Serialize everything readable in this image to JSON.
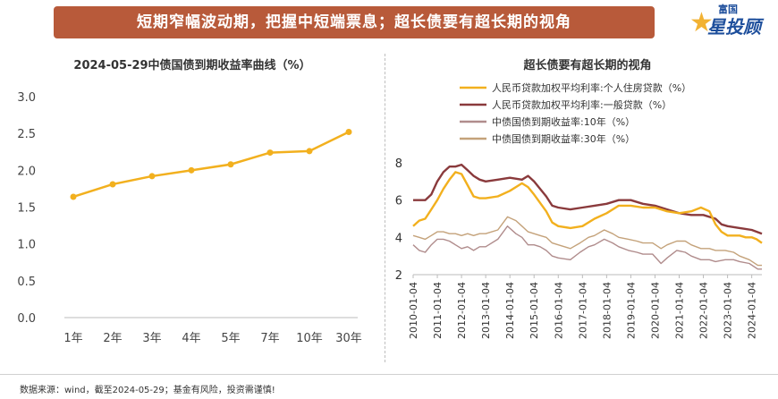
{
  "banner": {
    "title": "短期窄幅波动期，把握中短端票息；超长债要有超长期的视角"
  },
  "logo": {
    "small_text": "富国",
    "big_text": "星投顾",
    "star": "★"
  },
  "footer": {
    "text": "数据来源：wind，截至2024-05-29；基金有风险，投资需谨慎!"
  },
  "colors": {
    "gold": "#f2b01e",
    "maroon": "#8a3a3c",
    "mauve": "#b08c8c",
    "tan": "#c4a27a"
  },
  "chart_data": [
    {
      "type": "line",
      "title": "2024-05-29中债国债到期收益率曲线（%）",
      "categories": [
        "1年",
        "2年",
        "3年",
        "4年",
        "5年",
        "7年",
        "10年",
        "30年"
      ],
      "values": [
        1.64,
        1.81,
        1.92,
        2.0,
        2.08,
        2.24,
        2.26,
        2.52
      ],
      "ylim": [
        0.0,
        3.0
      ],
      "yticks": [
        "0.0",
        "0.5",
        "1.0",
        "1.5",
        "2.0",
        "2.5",
        "3.0"
      ],
      "color": "#f2b01e"
    },
    {
      "type": "line",
      "title": "超长债要有超长期的视角",
      "ylim": [
        2,
        8
      ],
      "yticks": [
        "2",
        "4",
        "6",
        "8"
      ],
      "x_labels": [
        "2010-01-04",
        "2011-01-04",
        "2012-01-04",
        "2013-01-04",
        "2014-01-04",
        "2015-01-04",
        "2016-01-04",
        "2017-01-04",
        "2018-01-04",
        "2019-01-04",
        "2020-01-04",
        "2021-01-04",
        "2022-01-04",
        "2023-01-04",
        "2024-01-04"
      ],
      "x_range": [
        2010.0,
        2024.42
      ],
      "series": [
        {
          "name": "人民币贷款加权平均利率:个人住房贷款（%）",
          "color": "#f2b01e",
          "points": [
            [
              2010.0,
              4.6
            ],
            [
              2010.25,
              4.9
            ],
            [
              2010.5,
              5.0
            ],
            [
              2010.75,
              5.5
            ],
            [
              2011.0,
              6.0
            ],
            [
              2011.25,
              6.6
            ],
            [
              2011.5,
              7.1
            ],
            [
              2011.75,
              7.5
            ],
            [
              2012.0,
              7.4
            ],
            [
              2012.25,
              6.8
            ],
            [
              2012.5,
              6.2
            ],
            [
              2012.75,
              6.1
            ],
            [
              2013.0,
              6.1
            ],
            [
              2013.5,
              6.2
            ],
            [
              2014.0,
              6.5
            ],
            [
              2014.5,
              6.9
            ],
            [
              2014.75,
              6.7
            ],
            [
              2015.0,
              6.3
            ],
            [
              2015.5,
              5.4
            ],
            [
              2015.75,
              4.8
            ],
            [
              2016.0,
              4.6
            ],
            [
              2016.5,
              4.5
            ],
            [
              2017.0,
              4.6
            ],
            [
              2017.5,
              5.0
            ],
            [
              2018.0,
              5.3
            ],
            [
              2018.5,
              5.7
            ],
            [
              2019.0,
              5.7
            ],
            [
              2019.5,
              5.6
            ],
            [
              2020.0,
              5.6
            ],
            [
              2020.5,
              5.4
            ],
            [
              2021.0,
              5.3
            ],
            [
              2021.5,
              5.4
            ],
            [
              2021.9,
              5.6
            ],
            [
              2022.25,
              5.4
            ],
            [
              2022.5,
              4.7
            ],
            [
              2022.75,
              4.3
            ],
            [
              2023.0,
              4.1
            ],
            [
              2023.5,
              4.1
            ],
            [
              2023.75,
              4.0
            ],
            [
              2024.0,
              4.0
            ],
            [
              2024.2,
              3.9
            ],
            [
              2024.42,
              3.7
            ]
          ]
        },
        {
          "name": "人民币贷款加权平均利率:一般贷款（%）",
          "color": "#8a3a3c",
          "points": [
            [
              2010.0,
              6.0
            ],
            [
              2010.5,
              6.0
            ],
            [
              2010.75,
              6.3
            ],
            [
              2011.0,
              7.0
            ],
            [
              2011.25,
              7.5
            ],
            [
              2011.5,
              7.8
            ],
            [
              2011.75,
              7.8
            ],
            [
              2012.0,
              7.9
            ],
            [
              2012.25,
              7.6
            ],
            [
              2012.5,
              7.3
            ],
            [
              2012.75,
              7.1
            ],
            [
              2013.0,
              7.0
            ],
            [
              2013.5,
              7.1
            ],
            [
              2014.0,
              7.2
            ],
            [
              2014.5,
              7.1
            ],
            [
              2014.75,
              7.3
            ],
            [
              2015.0,
              7.0
            ],
            [
              2015.5,
              6.2
            ],
            [
              2015.75,
              5.7
            ],
            [
              2016.0,
              5.6
            ],
            [
              2016.5,
              5.5
            ],
            [
              2017.0,
              5.6
            ],
            [
              2017.5,
              5.7
            ],
            [
              2018.0,
              5.8
            ],
            [
              2018.5,
              6.0
            ],
            [
              2019.0,
              6.0
            ],
            [
              2019.5,
              5.8
            ],
            [
              2020.0,
              5.7
            ],
            [
              2020.5,
              5.5
            ],
            [
              2021.0,
              5.3
            ],
            [
              2021.5,
              5.2
            ],
            [
              2022.0,
              5.2
            ],
            [
              2022.5,
              5.0
            ],
            [
              2022.75,
              4.7
            ],
            [
              2023.0,
              4.6
            ],
            [
              2023.5,
              4.5
            ],
            [
              2024.0,
              4.4
            ],
            [
              2024.42,
              4.2
            ]
          ]
        },
        {
          "name": "中债国债到期收益率:10年（%）",
          "color": "#b08c8c",
          "points": [
            [
              2010.0,
              3.6
            ],
            [
              2010.25,
              3.3
            ],
            [
              2010.5,
              3.2
            ],
            [
              2010.75,
              3.6
            ],
            [
              2011.0,
              3.9
            ],
            [
              2011.25,
              3.9
            ],
            [
              2011.5,
              3.8
            ],
            [
              2011.75,
              3.6
            ],
            [
              2012.0,
              3.4
            ],
            [
              2012.25,
              3.5
            ],
            [
              2012.5,
              3.3
            ],
            [
              2012.75,
              3.5
            ],
            [
              2013.0,
              3.5
            ],
            [
              2013.5,
              3.9
            ],
            [
              2013.9,
              4.6
            ],
            [
              2014.25,
              4.2
            ],
            [
              2014.5,
              4.0
            ],
            [
              2014.75,
              3.6
            ],
            [
              2015.0,
              3.6
            ],
            [
              2015.25,
              3.5
            ],
            [
              2015.5,
              3.3
            ],
            [
              2015.75,
              3.0
            ],
            [
              2016.0,
              2.9
            ],
            [
              2016.5,
              2.8
            ],
            [
              2016.9,
              3.2
            ],
            [
              2017.25,
              3.5
            ],
            [
              2017.5,
              3.6
            ],
            [
              2017.9,
              3.9
            ],
            [
              2018.25,
              3.7
            ],
            [
              2018.5,
              3.5
            ],
            [
              2018.9,
              3.3
            ],
            [
              2019.25,
              3.2
            ],
            [
              2019.5,
              3.1
            ],
            [
              2019.9,
              3.1
            ],
            [
              2020.25,
              2.6
            ],
            [
              2020.5,
              2.9
            ],
            [
              2020.9,
              3.3
            ],
            [
              2021.25,
              3.2
            ],
            [
              2021.5,
              3.0
            ],
            [
              2021.9,
              2.8
            ],
            [
              2022.25,
              2.8
            ],
            [
              2022.5,
              2.7
            ],
            [
              2022.9,
              2.8
            ],
            [
              2023.25,
              2.8
            ],
            [
              2023.5,
              2.7
            ],
            [
              2023.9,
              2.6
            ],
            [
              2024.25,
              2.3
            ],
            [
              2024.42,
              2.3
            ]
          ]
        },
        {
          "name": "中债国债到期收益率:30年（%）",
          "color": "#c4a27a",
          "points": [
            [
              2010.0,
              4.1
            ],
            [
              2010.25,
              4.0
            ],
            [
              2010.5,
              3.9
            ],
            [
              2010.75,
              4.1
            ],
            [
              2011.0,
              4.3
            ],
            [
              2011.25,
              4.3
            ],
            [
              2011.5,
              4.2
            ],
            [
              2011.75,
              4.2
            ],
            [
              2012.0,
              4.1
            ],
            [
              2012.25,
              4.2
            ],
            [
              2012.5,
              4.1
            ],
            [
              2012.75,
              4.2
            ],
            [
              2013.0,
              4.2
            ],
            [
              2013.5,
              4.4
            ],
            [
              2013.9,
              5.1
            ],
            [
              2014.25,
              4.9
            ],
            [
              2014.5,
              4.6
            ],
            [
              2014.75,
              4.3
            ],
            [
              2015.0,
              4.2
            ],
            [
              2015.25,
              4.1
            ],
            [
              2015.5,
              4.0
            ],
            [
              2015.75,
              3.7
            ],
            [
              2016.0,
              3.6
            ],
            [
              2016.5,
              3.4
            ],
            [
              2016.9,
              3.7
            ],
            [
              2017.25,
              4.0
            ],
            [
              2017.5,
              4.1
            ],
            [
              2017.9,
              4.4
            ],
            [
              2018.25,
              4.2
            ],
            [
              2018.5,
              4.0
            ],
            [
              2018.9,
              3.9
            ],
            [
              2019.25,
              3.8
            ],
            [
              2019.5,
              3.7
            ],
            [
              2019.9,
              3.7
            ],
            [
              2020.25,
              3.4
            ],
            [
              2020.5,
              3.6
            ],
            [
              2020.9,
              3.8
            ],
            [
              2021.25,
              3.8
            ],
            [
              2021.5,
              3.6
            ],
            [
              2021.9,
              3.4
            ],
            [
              2022.25,
              3.4
            ],
            [
              2022.5,
              3.3
            ],
            [
              2022.9,
              3.3
            ],
            [
              2023.25,
              3.2
            ],
            [
              2023.5,
              3.0
            ],
            [
              2023.9,
              2.8
            ],
            [
              2024.25,
              2.5
            ],
            [
              2024.42,
              2.5
            ]
          ]
        }
      ]
    }
  ]
}
